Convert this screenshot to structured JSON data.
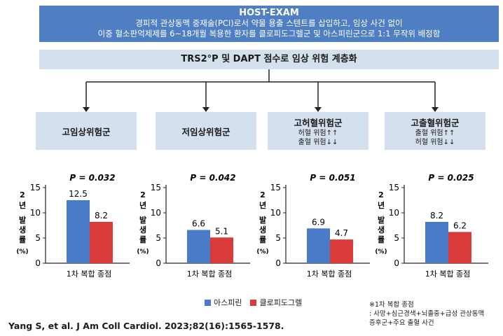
{
  "header": {
    "title": "HOST-EXAM",
    "line1": "경피적 관상동맥 중재술(PCI)로서 약물 용출 스텐트를 삽입하고, 임상 사건 없이",
    "line2": "이중 혈소판억제제를 6~18개월 복용한 환자를 클로피도그렐군 및 아스피린군으로 1:1 무작위 배정함"
  },
  "stratification": "TRS2°P 및 DAPT 점수로 임상 위험 계층화",
  "groups": [
    {
      "name": "고임상위험군",
      "sub1": "",
      "sub2": ""
    },
    {
      "name": "저임상위험군",
      "sub1": "",
      "sub2": ""
    },
    {
      "name": "고허혈위험군",
      "sub1": "허혈 위험↑↑",
      "sub2": "출혈 위험↓↓"
    },
    {
      "name": "고출혈위험군",
      "sub1": "출혈 위험↑↑",
      "sub2": "허혈 위험↓↓"
    }
  ],
  "colors": {
    "aspirin": "#4a7bc8",
    "clopidogrel": "#d93a3a",
    "header": "#4f7fc2",
    "box": "#d5e0ef"
  },
  "chart_data": [
    {
      "type": "bar",
      "title": "P = 0.032",
      "categories": [
        "1차 복합 종점"
      ],
      "ylabel": "2년 발생률 (%)",
      "ylim": [
        0,
        15
      ],
      "yticks": [
        0,
        5,
        10,
        15
      ],
      "series": [
        {
          "name": "아스피린",
          "values": [
            12.5
          ]
        },
        {
          "name": "클로피도그렐",
          "values": [
            8.2
          ]
        }
      ]
    },
    {
      "type": "bar",
      "title": "P = 0.042",
      "categories": [
        "1차 복합 종점"
      ],
      "ylabel": "2년 발생률 (%)",
      "ylim": [
        0,
        15
      ],
      "yticks": [
        0,
        5,
        10,
        15
      ],
      "series": [
        {
          "name": "아스피린",
          "values": [
            6.6
          ]
        },
        {
          "name": "클로피도그렐",
          "values": [
            5.1
          ]
        }
      ]
    },
    {
      "type": "bar",
      "title": "P = 0.051",
      "categories": [
        "1차 복합 종점"
      ],
      "ylabel": "2년 발생률 (%)",
      "ylim": [
        0,
        15
      ],
      "yticks": [
        0,
        5,
        10,
        15
      ],
      "series": [
        {
          "name": "아스피린",
          "values": [
            6.9
          ]
        },
        {
          "name": "클로피도그렐",
          "values": [
            4.7
          ]
        }
      ]
    },
    {
      "type": "bar",
      "title": "P = 0.025",
      "categories": [
        "1차 복합 종점"
      ],
      "ylabel": "2년 발생률 (%)",
      "ylim": [
        0,
        15
      ],
      "yticks": [
        0,
        5,
        10,
        15
      ],
      "series": [
        {
          "name": "아스피린",
          "values": [
            8.2
          ]
        },
        {
          "name": "클로피도그렐",
          "values": [
            6.2
          ]
        }
      ]
    }
  ],
  "legend": {
    "aspirin": "아스피린",
    "clopidogrel": "클로피도그렐"
  },
  "note": {
    "line1": "※1차 복합 종점",
    "line2": ": 사망+심근경색+뇌졸중+급성 관상동맥",
    "line3": "증후군+주요 출혈 사건"
  },
  "citation": "Yang S, et al. J Am Coll Cardiol. 2023;82(16):1565-1578."
}
